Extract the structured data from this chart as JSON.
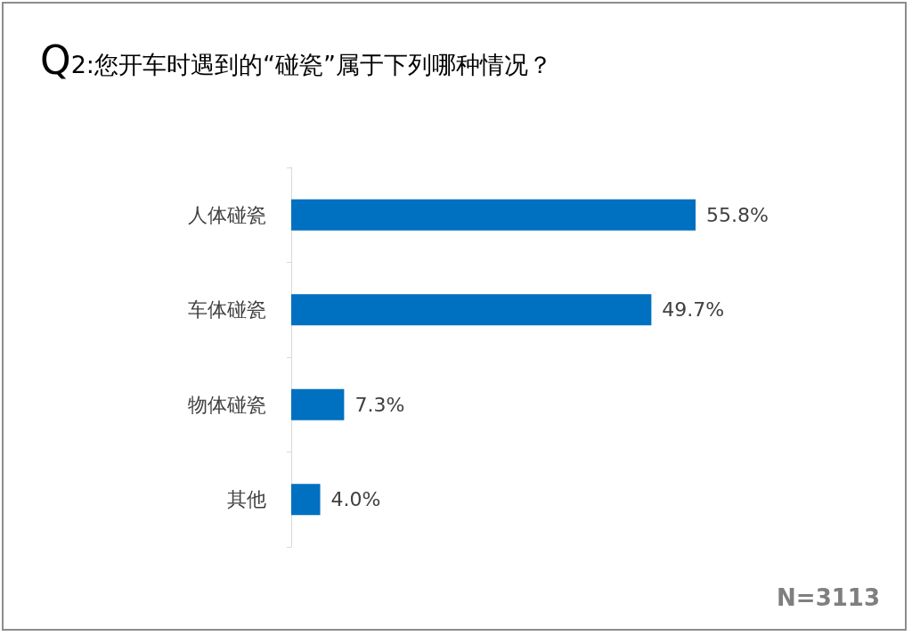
{
  "chart_data": {
    "type": "bar",
    "orientation": "horizontal",
    "title": "Q2:您开车时遇到的“碰瓷”属于下列哪种情况？",
    "categories": [
      "人体碰瓷",
      "车体碰瓷",
      "物体碰瓷",
      "其他"
    ],
    "values": [
      55.8,
      49.7,
      7.3,
      4.0
    ],
    "value_labels": [
      "55.8%",
      "49.7%",
      "7.3%",
      "4.0%"
    ],
    "color": "#0070c0",
    "annotations": [
      "N=3113"
    ]
  }
}
